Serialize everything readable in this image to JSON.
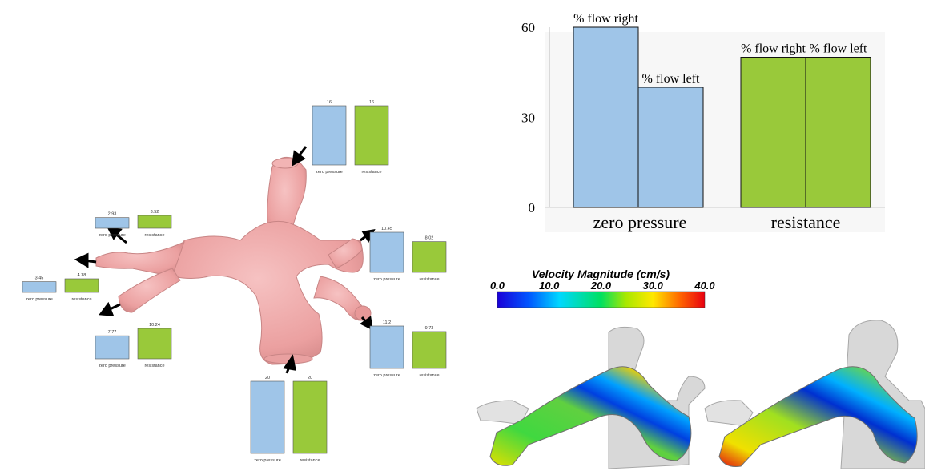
{
  "colors": {
    "zero_pressure": "#9fc5e8",
    "resistance": "#99c93a",
    "vessel": "#f0a8a8",
    "vessel_shade": "#c98080",
    "arrow": "#000000"
  },
  "left_panel": {
    "bar_labels": {
      "zero": "zero pressure",
      "resistance": "resistance"
    },
    "outlets": [
      {
        "id": "top",
        "zero": "16",
        "resistance": "16"
      },
      {
        "id": "upper-left",
        "zero": "2.93",
        "resistance": "3.52"
      },
      {
        "id": "left",
        "zero": "3.45",
        "resistance": "4.38"
      },
      {
        "id": "lower-left",
        "zero": "7.77",
        "resistance": "10.24"
      },
      {
        "id": "right-upper",
        "zero": "10.45",
        "resistance": "8.02"
      },
      {
        "id": "right-lower",
        "zero": "11.2",
        "resistance": "9.73"
      },
      {
        "id": "bottom",
        "zero": "20",
        "resistance": "20"
      }
    ]
  },
  "chart_data": {
    "type": "bar",
    "categories": [
      "zero pressure",
      "resistance"
    ],
    "series": [
      {
        "name": "% flow right",
        "values": [
          60,
          50
        ]
      },
      {
        "name": "% flow left",
        "values": [
          40,
          50
        ]
      }
    ],
    "bar_labels": [
      [
        "% flow right",
        "% flow left"
      ],
      [
        "% flow right",
        "% flow left"
      ]
    ],
    "ylim": [
      0,
      60
    ],
    "yticks": [
      0,
      30,
      60
    ],
    "xlabel": "",
    "ylabel": "",
    "title": ""
  },
  "colorbar": {
    "title": "Velocity Magnitude (cm/s)",
    "ticks": [
      "0.0",
      "10.0",
      "20.0",
      "30.0",
      "40.0"
    ]
  }
}
